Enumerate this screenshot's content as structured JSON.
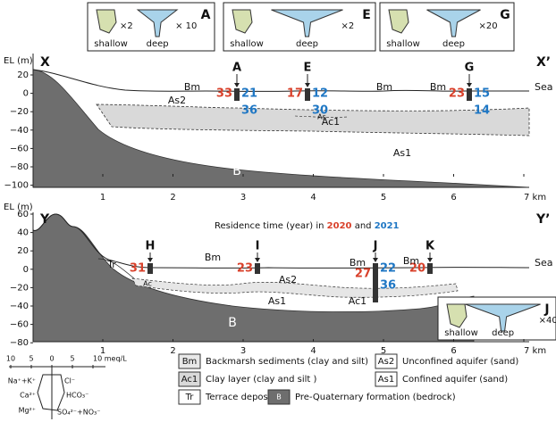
{
  "stiff_boxes": [
    {
      "id": "A",
      "shallow_factor": "×2",
      "deep_factor": "× 10",
      "shallow": "shallow",
      "deep": "deep"
    },
    {
      "id": "E",
      "deep_factor": "×2",
      "shallow": "shallow",
      "deep": "deep"
    },
    {
      "id": "G",
      "deep_factor": "×20",
      "shallow": "shallow",
      "deep": "deep"
    }
  ],
  "sections": [
    {
      "start": "X",
      "end": "X’",
      "y_axis_title": "EL (m)",
      "y_ticks": [
        "20",
        "0",
        "−20",
        "−40",
        "−60",
        "−80",
        "−100"
      ],
      "x_ticks": [
        "1",
        "2",
        "3",
        "4",
        "5",
        "6",
        "7 km"
      ],
      "wells": [
        {
          "name": "A",
          "residence_2020": [
            "33"
          ],
          "residence_2021": [
            "21",
            "36"
          ]
        },
        {
          "name": "E",
          "residence_2020": [
            "17"
          ],
          "residence_2021": [
            "12",
            "30"
          ]
        },
        {
          "name": "G",
          "residence_2020": [
            "23"
          ],
          "residence_2021": [
            "15",
            "14"
          ]
        }
      ],
      "units": [
        "Bm",
        "Bm",
        "Bm",
        "As2",
        "Ac1",
        "As",
        "As1",
        "B"
      ],
      "sea": "Sea"
    },
    {
      "start": "Y",
      "end": "Y’",
      "y_axis_title": "EL (m)",
      "y_ticks": [
        "60",
        "40",
        "20",
        "0",
        "−20",
        "−40",
        "−60",
        "−80"
      ],
      "x_ticks": [
        "1",
        "2",
        "3",
        "4",
        "5",
        "6",
        "7 km"
      ],
      "wells": [
        {
          "name": "H",
          "residence_2020": [
            "31"
          ],
          "residence_2021": []
        },
        {
          "name": "I",
          "residence_2020": [
            "23"
          ],
          "residence_2021": []
        },
        {
          "name": "J",
          "residence_2020": [
            "27"
          ],
          "residence_2021": [
            "22",
            "36"
          ]
        },
        {
          "name": "K",
          "residence_2020": [
            "20"
          ],
          "residence_2021": []
        }
      ],
      "units": [
        "Tr",
        "Bm",
        "Bm",
        "Bm",
        "As2",
        "Ac",
        "Ac1",
        "As1",
        "B"
      ],
      "sea": "Sea",
      "residence_title": [
        "Residence time (year) in ",
        "2020",
        " and ",
        "2021"
      ],
      "stiff_box": {
        "id": "J",
        "deep_factor": "×40",
        "shallow": "shallow",
        "deep": "deep"
      }
    }
  ],
  "legend": {
    "scale": [
      "10",
      "5",
      "0",
      "5",
      "10 meq/L"
    ],
    "ions": [
      "Na⁺+K⁺",
      "Cl⁻",
      "Ca²⁺",
      "HCO₃⁻",
      "Mg²⁺",
      "SO₄²⁻+NO₃⁻"
    ],
    "items": [
      {
        "code": "Bm",
        "text": "Backmarsh sediments (clay and silt)"
      },
      {
        "code": "As2",
        "text": "Unconfined aquifer (sand)"
      },
      {
        "code": "Ac1",
        "text": "Clay layer (clay and silt )"
      },
      {
        "code": "As1",
        "text": "Confined aquifer (sand)"
      },
      {
        "code": "Tr",
        "text": "Terrace deposit"
      },
      {
        "code": "B",
        "text": "Pre-Quaternary formation (bedrock)"
      }
    ]
  }
}
